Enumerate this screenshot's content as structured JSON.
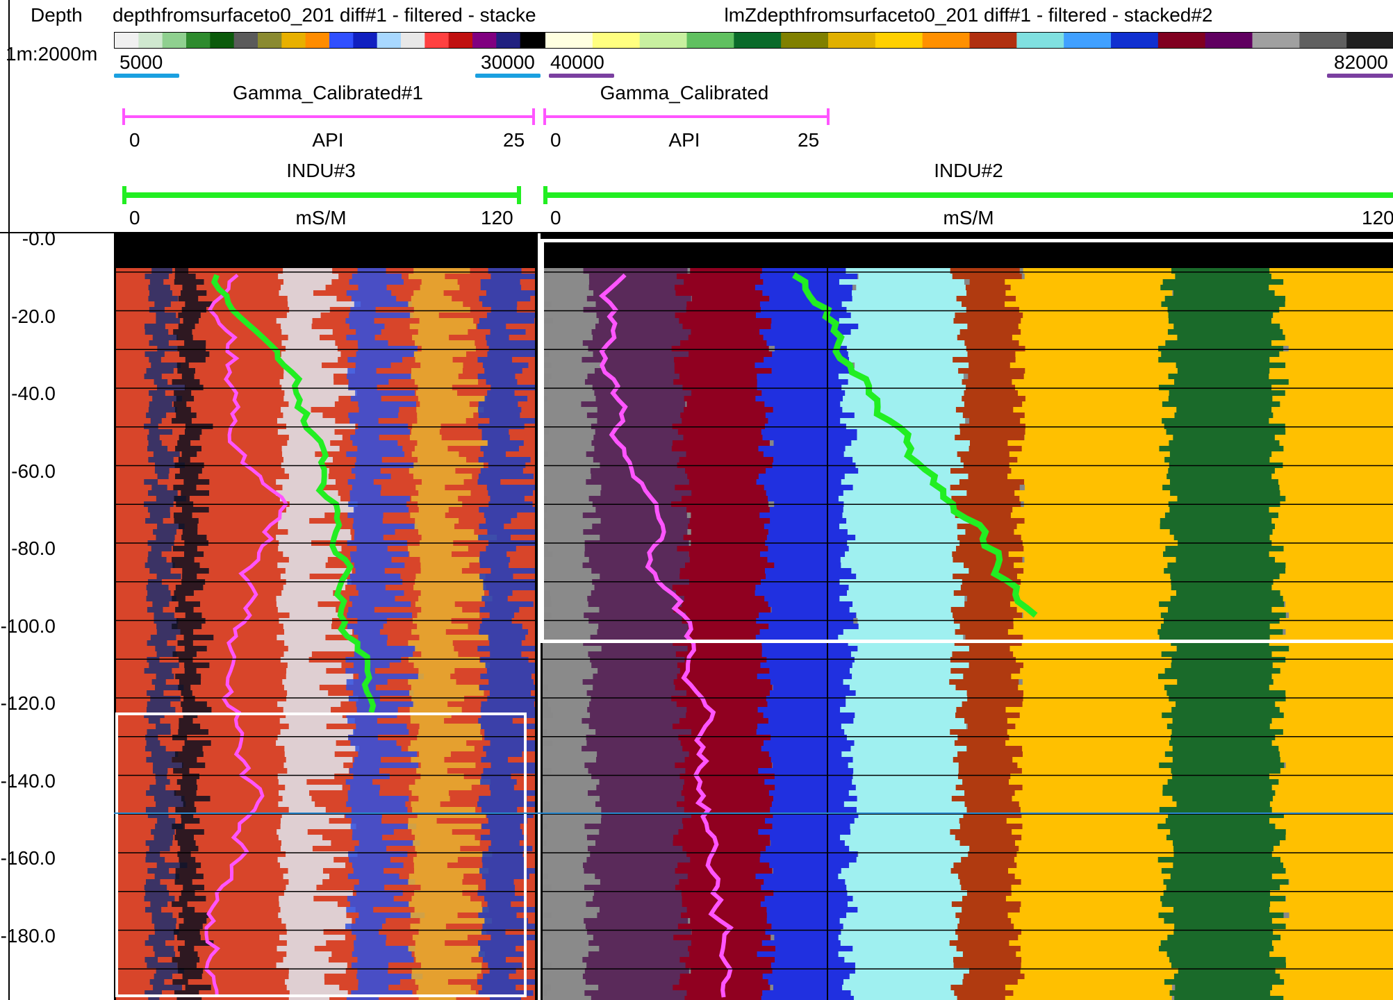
{
  "header": {
    "depth_label": "Depth",
    "scale_label": "1m:2000m",
    "track1": {
      "title": "depthfromsurfaceto0_201 diff#1 - filtered - stacke",
      "range_min": "5000",
      "range_max": "30000",
      "gamma_name": "Gamma_Calibrated#1",
      "gamma_unit": "API",
      "gamma_min": "0",
      "gamma_max": "25",
      "indu_name": "INDU#3",
      "indu_unit": "mS/M",
      "indu_min": "0",
      "indu_max": "120"
    },
    "track2": {
      "title": "lmZdepthfromsurfaceto0_201 diff#1 - filtered - stacked#2",
      "range_min": "40000",
      "range_max": "82000",
      "gamma_name": "Gamma_Calibrated",
      "gamma_unit": "API",
      "gamma_min": "0",
      "gamma_max": "25",
      "indu_name": "INDU#2",
      "indu_unit": "mS/M",
      "indu_min": "0",
      "indu_max": "120"
    }
  },
  "depth_ticks": [
    "-0.0",
    "-20.0",
    "-40.0",
    "-60.0",
    "-80.0",
    "-100.0",
    "-120.0",
    "-140.0",
    "-160.0",
    "-180.0"
  ],
  "colors": {
    "gamma_curve": "#ff55ff",
    "indu_curve": "#22ee22",
    "range1_marker": "#1aa0e0",
    "range2_marker": "#7a3fa0",
    "selection_box": "#ffffff"
  },
  "colormap1": [
    "#f0f0f0",
    "#cfe8cf",
    "#8fd08f",
    "#2e8b2e",
    "#0b5a0b",
    "#5a5a5a",
    "#8a8a30",
    "#e8b000",
    "#ff8c00",
    "#3050ff",
    "#1020c0",
    "#a8d8ff",
    "#e8e8e8",
    "#ff4040",
    "#c01010",
    "#800080",
    "#202080",
    "#000000"
  ],
  "colormap2": [
    "#ffffe0",
    "#ffff80",
    "#c8f0a0",
    "#60c060",
    "#0a6a2a",
    "#808000",
    "#e0b000",
    "#ffd000",
    "#ff9000",
    "#b03010",
    "#80e0e0",
    "#40a0ff",
    "#1030d0",
    "#800020",
    "#600060",
    "#a0a0a0",
    "#606060",
    "#202020"
  ]
}
